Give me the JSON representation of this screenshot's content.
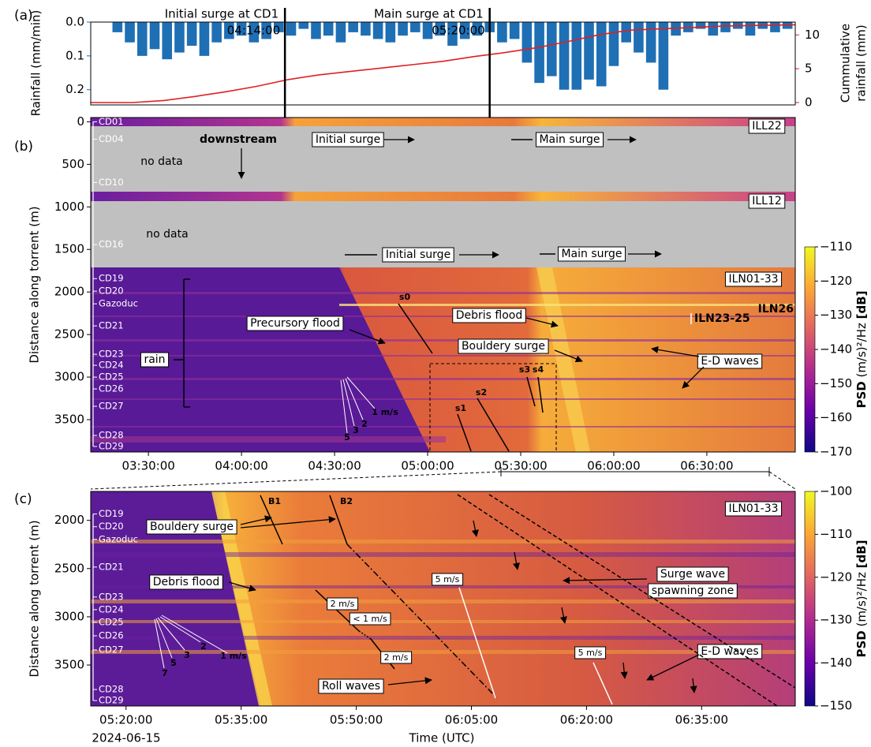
{
  "chart_data": [
    {
      "type": "bar",
      "panel_label": "(a)",
      "ylabel": "Rainfall (mm/min)",
      "y2label": [
        "Cummulative",
        "rainfall (mm)"
      ],
      "xlim": [
        191.4,
        418.5
      ],
      "ylim": [
        0.245,
        0
      ],
      "yticks": [
        {
          "value": 0,
          "label": "0.0"
        },
        0.1,
        0.2
      ],
      "y2lim": [
        -0.35,
        11.9
      ],
      "y2ticks": [
        0,
        5,
        10
      ],
      "series": [
        {
          "type": "bar",
          "color": "#1f6fb4",
          "x": [
            200,
            204,
            208,
            212,
            216,
            220,
            224,
            228,
            232,
            236,
            240,
            244,
            248,
            252,
            256,
            260,
            264,
            268,
            272,
            276,
            280,
            284,
            288,
            292,
            296,
            300,
            304,
            308,
            312,
            316,
            320,
            324,
            328,
            332,
            336,
            340,
            344,
            348,
            352,
            356,
            360,
            364,
            368,
            372,
            376,
            380,
            384,
            388,
            392,
            396,
            400,
            404,
            408,
            412,
            416
          ],
          "values": [
            0.03,
            0.06,
            0.1,
            0.08,
            0.11,
            0.09,
            0.07,
            0.1,
            0.06,
            0.05,
            0.04,
            0.06,
            0.05,
            0.03,
            0.04,
            0.02,
            0.05,
            0.04,
            0.06,
            0.03,
            0.04,
            0.05,
            0.06,
            0.04,
            0.03,
            0.05,
            0.04,
            0.07,
            0.05,
            0.04,
            0.03,
            0.06,
            0.05,
            0.12,
            0.18,
            0.16,
            0.2,
            0.2,
            0.17,
            0.19,
            0.13,
            0.06,
            0.09,
            0.12,
            0.2,
            0.04,
            0.03,
            0.02,
            0.04,
            0.03,
            0.02,
            0.04,
            0.02,
            0.03,
            0.02
          ]
        },
        {
          "type": "line",
          "axis": "y2",
          "color": "#e02020",
          "x": [
            191.4,
            205,
            215,
            225,
            235,
            245,
            255,
            265,
            275,
            285,
            295,
            305,
            315,
            325,
            335,
            345,
            355,
            365,
            375,
            385,
            395,
            405,
            418.5
          ],
          "values": [
            0,
            0,
            0.3,
            0.9,
            1.6,
            2.4,
            3.4,
            4.1,
            4.6,
            5.1,
            5.6,
            6.1,
            6.8,
            7.4,
            8.1,
            9.0,
            10.0,
            10.7,
            10.9,
            11.1,
            11.3,
            11.4,
            11.5
          ]
        }
      ],
      "annotations": [
        {
          "text": "Initial surge at CD1",
          "time_label": "04:14:00",
          "x": 254
        },
        {
          "text": "Main surge at CD1",
          "time_label": "05:20:00",
          "x": 320
        }
      ]
    },
    {
      "type": "heatmap",
      "panel_label": "(b)",
      "ylabel": "Distance along torrent (m)",
      "xlim": [
        191.4,
        418.5
      ],
      "xticks": [
        {
          "value": 210,
          "label": "03:30:00"
        },
        {
          "value": 240,
          "label": "04:00:00"
        },
        {
          "value": 270,
          "label": "04:30:00"
        },
        {
          "value": 300,
          "label": "05:00:00"
        },
        {
          "value": 330,
          "label": "05:30:00"
        },
        {
          "value": 360,
          "label": "06:00:00"
        },
        {
          "value": 390,
          "label": "06:30:00"
        }
      ],
      "ylim": [
        3880,
        -50
      ],
      "yticks": [
        0,
        500,
        1000,
        1500,
        2000,
        2500,
        3000,
        3500
      ],
      "colorbar_label": [
        "PSD",
        " (m/s)²/Hz ",
        "[dB]"
      ],
      "clim": [
        -170,
        -110
      ],
      "cticks": [
        {
          "value": -170,
          "label": "−170"
        },
        {
          "value": -160,
          "label": "−160"
        },
        {
          "value": -150,
          "label": "−150"
        },
        {
          "value": -140,
          "label": "−140"
        },
        {
          "value": -130,
          "label": "−130"
        },
        {
          "value": -120,
          "label": "−120"
        },
        {
          "value": -110,
          "label": "−110"
        }
      ],
      "colormap": [
        "#0d0887",
        "#6a00a8",
        "#b12a90",
        "#e16462",
        "#fca636",
        "#f0f921"
      ],
      "stations": [
        {
          "name": "CD01",
          "distance": 0
        },
        {
          "name": "CD04",
          "distance": 204
        },
        {
          "name": "CD10",
          "distance": 713
        },
        {
          "name": "CD16",
          "distance": 1444
        },
        {
          "name": "CD19",
          "distance": 1843
        },
        {
          "name": "CD20",
          "distance": 1990
        },
        {
          "name": "Gazoduc",
          "distance": 2139
        },
        {
          "name": "CD21",
          "distance": 2398
        },
        {
          "name": "CD23",
          "distance": 2731
        },
        {
          "name": "CD24",
          "distance": 2861
        },
        {
          "name": "CD25",
          "distance": 3000
        },
        {
          "name": "CD26",
          "distance": 3139
        },
        {
          "name": "CD27",
          "distance": 3343
        },
        {
          "name": "CD28",
          "distance": 3685
        },
        {
          "name": "CD29",
          "distance": 3815
        }
      ],
      "annotations": [
        "ILL22",
        "ILL12",
        "ILN01-33",
        "no data",
        "no data",
        "downstream",
        "Initial surge",
        "Main surge",
        "Initial surge",
        "Main surge",
        "s0",
        "Precursory  flood",
        "Debris flood",
        "Bouldery surge",
        "E-D waves",
        "rain",
        "1 m/s",
        "2",
        "3",
        "5",
        "s1",
        "s2",
        "s3",
        "s4",
        "ILN23-25",
        "ILN26"
      ]
    },
    {
      "type": "heatmap",
      "panel_label": "(c)",
      "ylabel": "Distance along torrent (m)",
      "xlabel": "Time (UTC)",
      "date_label": "2024-06-15",
      "xlim": [
        315.4,
        407.2
      ],
      "xticks": [
        {
          "value": 320,
          "label": "05:20:00"
        },
        {
          "value": 335,
          "label": "05:35:00"
        },
        {
          "value": 350,
          "label": "05:50:00"
        },
        {
          "value": 365,
          "label": "06:05:00"
        },
        {
          "value": 380,
          "label": "06:20:00"
        },
        {
          "value": 395,
          "label": "06:35:00"
        }
      ],
      "ylim": [
        3925,
        1700
      ],
      "yticks": [
        2000,
        2500,
        3000,
        3500
      ],
      "colorbar_label": [
        "PSD",
        " (m/s)²/Hz ",
        "[dB]"
      ],
      "clim": [
        -150,
        -100
      ],
      "cticks": [
        {
          "value": -150,
          "label": "−150"
        },
        {
          "value": -140,
          "label": "−140"
        },
        {
          "value": -130,
          "label": "−130"
        },
        {
          "value": -120,
          "label": "−120"
        },
        {
          "value": -110,
          "label": "−110"
        },
        {
          "value": -100,
          "label": "−100"
        }
      ],
      "colormap": [
        "#0d0887",
        "#6a00a8",
        "#b12a90",
        "#e16462",
        "#fca636",
        "#f0f921"
      ],
      "stations": [
        {
          "name": "CD19",
          "distance": 1934
        },
        {
          "name": "CD20",
          "distance": 2066
        },
        {
          "name": "Gazoduc",
          "distance": 2197
        },
        {
          "name": "CD21",
          "distance": 2484
        },
        {
          "name": "CD23",
          "distance": 2795
        },
        {
          "name": "CD24",
          "distance": 2926
        },
        {
          "name": "CD25",
          "distance": 3057
        },
        {
          "name": "CD26",
          "distance": 3197
        },
        {
          "name": "CD27",
          "distance": 3344
        },
        {
          "name": "CD28",
          "distance": 3754
        },
        {
          "name": "CD29",
          "distance": 3869
        }
      ],
      "annotations": [
        "ILN01-33",
        "B1",
        "B2",
        "Bouldery surge",
        "Debris flood",
        "Roll waves",
        "Surge wave",
        "spawning zone",
        "E-D waves",
        "5 m/s",
        "5 m/s",
        "2 m/s",
        "< 1 m/s",
        "2 m/s",
        "1 m/s",
        "2",
        "3",
        "5",
        "7"
      ]
    }
  ]
}
